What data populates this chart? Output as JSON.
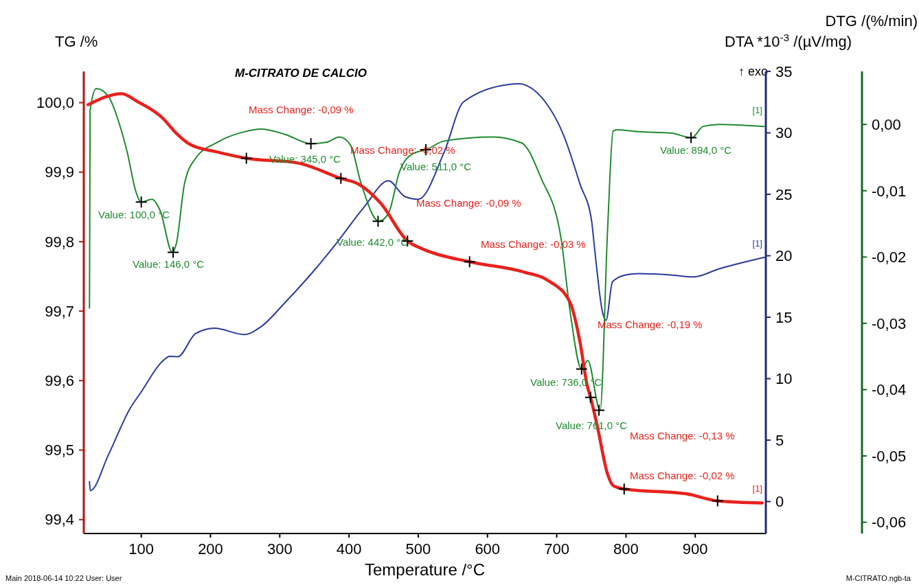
{
  "chart_data": {
    "type": "line",
    "title": "M-CITRATO DE CALCIO",
    "xlabel": "Temperature /°C",
    "ylabel": "TG /%",
    "y2label": "DTA *10$^{-3}$ /(µV/mg)",
    "y3label": "DTG /(%/min)",
    "xlim": [
      17,
      1002
    ],
    "xticks": [
      100,
      200,
      300,
      400,
      500,
      600,
      700,
      800,
      900
    ],
    "ylim": [
      99.38,
      100.045
    ],
    "yticks": [
      {
        "value": 99.4,
        "label": "99,4"
      },
      {
        "value": 99.5,
        "label": "99,5"
      },
      {
        "value": 99.6,
        "label": "99,6"
      },
      {
        "value": 99.7,
        "label": "99,7"
      },
      {
        "value": 99.8,
        "label": "99,8"
      },
      {
        "value": 99.9,
        "label": "99,9"
      },
      {
        "value": 100,
        "label": "100,0"
      }
    ],
    "y2lim": [
      -2.6,
      35
    ],
    "y2ticks": [
      0,
      5,
      10,
      15,
      20,
      25,
      30,
      35
    ],
    "y3lim": [
      -0.0617,
      0.008
    ],
    "y3ticks": [
      {
        "value": -0.06,
        "label": "-0,06"
      },
      {
        "value": -0.05,
        "label": "-0,05"
      },
      {
        "value": -0.04,
        "label": "-0,04"
      },
      {
        "value": -0.03,
        "label": "-0,03"
      },
      {
        "value": -0.02,
        "label": "-0,02"
      },
      {
        "value": -0.01,
        "label": "-0,01"
      },
      {
        "value": 0,
        "label": "0,00"
      }
    ],
    "line_style": "solid",
    "series": [
      {
        "axis": "y2",
        "color": "#2b3a9f",
        "x": [
          25.2,
          26.4,
          52.7,
          84.1,
          99.8,
          131.2,
          141.0,
          152.8,
          178.4,
          205.8,
          248.8,
          272.6,
          307.8,
          347.0,
          382.4,
          421.4,
          457.1,
          480.6,
          500.2,
          537.5,
          565.3,
          630.8,
          645.0,
          677.8,
          710.5,
          733.9,
          750.2,
          754.8,
          766.7,
          771.2,
          780.6,
          799.4,
          818.0,
          864.7,
          897.4,
          934.8,
          1000
        ],
        "values": [
          1.62,
          0.89,
          3.82,
          7.6,
          8.91,
          11.45,
          11.82,
          11.79,
          13.66,
          14.1,
          13.59,
          14.21,
          16.2,
          18.63,
          21.06,
          23.93,
          26.1,
          24.82,
          24.6,
          28.44,
          32.51,
          33.94,
          33.99,
          32.91,
          29.73,
          25.79,
          22.91,
          20.53,
          15.26,
          14.75,
          17.89,
          18.44,
          18.55,
          18.44,
          18.28,
          18.94,
          19.87
        ]
      },
      {
        "axis": "y3",
        "color": "#1f8a2e",
        "x": [
          25.2,
          26.1,
          35.0,
          52.7,
          68.3,
          80.2,
          92.1,
          99.8,
          115.5,
          127.3,
          144.9,
          150.8,
          162.5,
          178.4,
          209.7,
          248.8,
          272.6,
          307.8,
          345.0,
          366.9,
          386.4,
          402.1,
          417.5,
          443.3,
          457.1,
          472.7,
          492.4,
          511.7,
          537.5,
          607.7,
          649.6,
          677.4,
          705.8,
          719.8,
          735.9,
          744.8,
          762.7,
          773.6,
          781.5,
          787.5,
          818.0,
          864.7,
          895.0,
          911.5,
          934.8,
          999.5
        ],
        "values": [
          -0.0277,
          0.0021,
          0.0054,
          0.0042,
          0.0001,
          -0.0044,
          -0.0101,
          -0.0117,
          -0.0113,
          -0.013,
          -0.0193,
          -0.0179,
          -0.0089,
          -0.0051,
          -0.0027,
          -0.0011,
          -0.0007,
          -0.0015,
          -0.0029,
          -0.0027,
          -0.0019,
          -0.0031,
          -0.0089,
          -0.0146,
          -0.0134,
          -0.0072,
          -0.0044,
          -0.0038,
          -0.0025,
          -0.0019,
          -0.0028,
          -0.0081,
          -0.0169,
          -0.0286,
          -0.0369,
          -0.0356,
          -0.0431,
          -0.0155,
          -0.001,
          -0.0008,
          -0.0011,
          -0.0013,
          -0.002,
          -0.0003,
          0,
          -0.0003
        ]
      },
      {
        "axis": "y",
        "color": "#e8211c",
        "x": [
          23.2,
          72.2,
          92.1,
          130.8,
          150.6,
          170.4,
          209.7,
          251.8,
          327.2,
          388.3,
          413.5,
          445.2,
          484.5,
          507.7,
          574.2,
          649.6,
          689.3,
          719.0,
          733.9,
          743.8,
          748.8,
          758.7,
          773.6,
          781.5,
          797.4,
          887.7,
          932.3,
          996.8
        ],
        "values": [
          99.997,
          100.013,
          100.003,
          99.978,
          99.956,
          99.94,
          99.929,
          99.92,
          99.913,
          99.891,
          99.883,
          99.856,
          99.801,
          99.789,
          99.771,
          99.757,
          99.743,
          99.713,
          99.654,
          99.594,
          99.576,
          99.534,
          99.465,
          99.449,
          99.444,
          99.437,
          99.427,
          99.424
        ]
      },
      {
        "type": "scatter",
        "axis": "y",
        "color": "#000000",
        "marker": "cross",
        "x": [
          251.8,
          388.3,
          484.5,
          574.2,
          748.8,
          797.4,
          932.3
        ],
        "values": [
          99.92,
          99.891,
          99.801,
          99.771,
          99.576,
          99.444,
          99.427
        ]
      },
      {
        "type": "scatter",
        "axis": "y3",
        "color": "#000000",
        "marker": "cross",
        "x": [
          100,
          146,
          345,
          442,
          511,
          736,
          761,
          894
        ],
        "values": [
          -0.0117,
          -0.0193,
          -0.0029,
          -0.0146,
          -0.0038,
          -0.0369,
          -0.0431,
          -0.002
        ]
      }
    ],
    "annotations": [
      "Mass Change: -0,09 %",
      "Mass Change: -0,02 %",
      "Mass Change: -0,09 %",
      "Mass Change: -0,03 %",
      "Mass Change: -0,19 %",
      "Mass Change: -0,13 %",
      "Mass Change: -0,02 %",
      "Value: 100,0 °C",
      "Value: 146,0 °C",
      "Value: 345,0 °C",
      "Value: 511,0 °C",
      "Value: 442,0 °C",
      "Value: 736,0 °C",
      "Value: 761,0 °C",
      "Value: 894,0 °C",
      "[1]",
      "[1]",
      "[1]",
      "↑ exo",
      "Main   2018-06-14 10:22   User: User",
      "M-CITRATO.ngb-ta"
    ]
  }
}
